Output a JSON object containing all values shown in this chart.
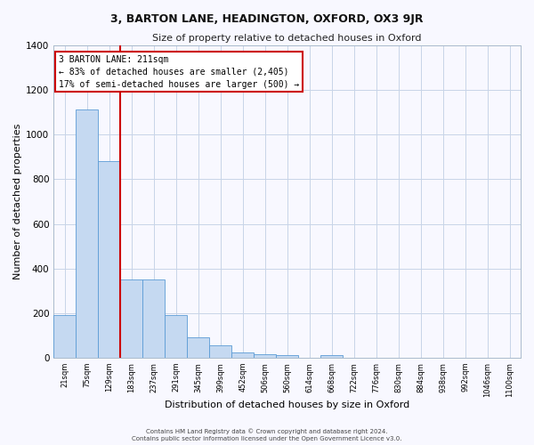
{
  "title": "3, BARTON LANE, HEADINGTON, OXFORD, OX3 9JR",
  "subtitle": "Size of property relative to detached houses in Oxford",
  "xlabel": "Distribution of detached houses by size in Oxford",
  "ylabel": "Number of detached properties",
  "footnote1": "Contains HM Land Registry data © Crown copyright and database right 2024.",
  "footnote2": "Contains public sector information licensed under the Open Government Licence v3.0.",
  "bin_labels": [
    "21sqm",
    "75sqm",
    "129sqm",
    "183sqm",
    "237sqm",
    "291sqm",
    "345sqm",
    "399sqm",
    "452sqm",
    "506sqm",
    "560sqm",
    "614sqm",
    "668sqm",
    "722sqm",
    "776sqm",
    "830sqm",
    "884sqm",
    "938sqm",
    "992sqm",
    "1046sqm",
    "1100sqm"
  ],
  "bar_values": [
    190,
    1113,
    882,
    352,
    352,
    192,
    93,
    57,
    25,
    17,
    10,
    0,
    12,
    0,
    0,
    0,
    0,
    0,
    0,
    0,
    0
  ],
  "bar_color": "#c5d9f1",
  "bar_edge_color": "#5b9bd5",
  "vline_x_index": 3,
  "vline_color": "#cc0000",
  "annotation_text": "3 BARTON LANE: 211sqm\n← 83% of detached houses are smaller (2,405)\n17% of semi-detached houses are larger (500) →",
  "annotation_box_color": "#ffffff",
  "annotation_box_edge": "#cc0000",
  "ylim": [
    0,
    1400
  ],
  "yticks": [
    0,
    200,
    400,
    600,
    800,
    1000,
    1200,
    1400
  ],
  "background_color": "#f8f8ff",
  "grid_color": "#c8d4e8",
  "title_fontsize": 9,
  "subtitle_fontsize": 8
}
